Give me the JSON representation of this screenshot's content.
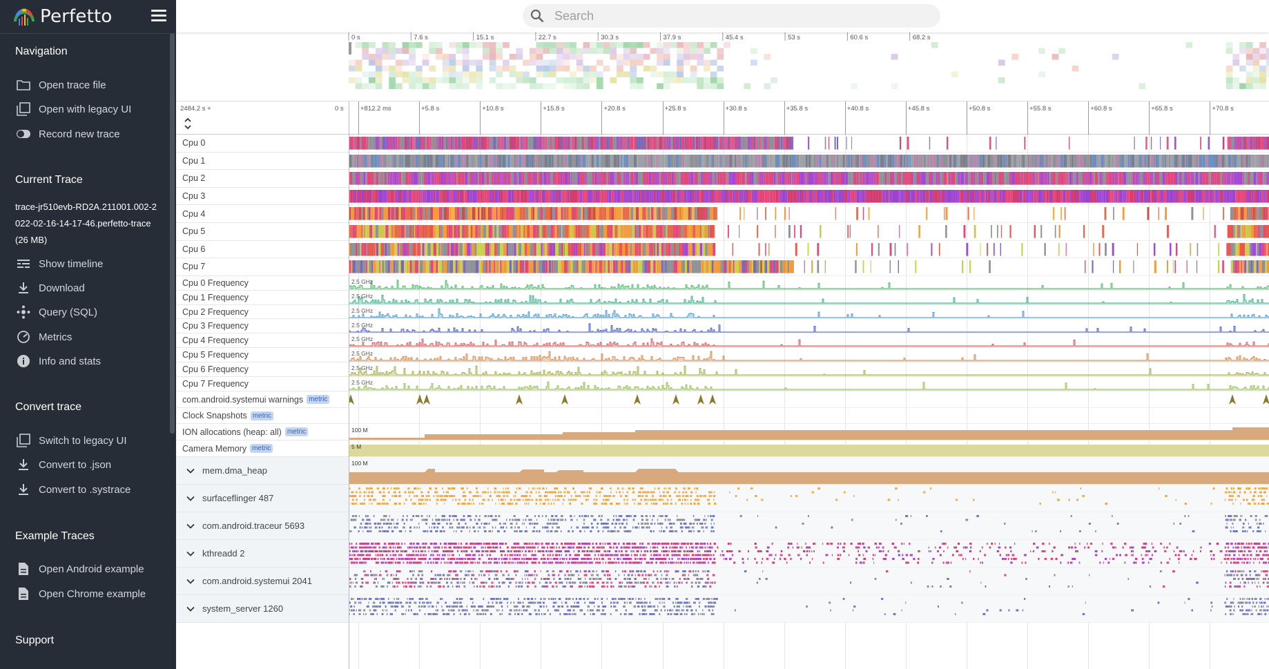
{
  "app": {
    "brand": "Perfetto"
  },
  "search": {
    "placeholder": "Search"
  },
  "sidebar": {
    "navigation": {
      "title": "Navigation",
      "items": [
        {
          "label": "Open trace file",
          "icon": "folder-icon"
        },
        {
          "label": "Open with legacy UI",
          "icon": "filter-none-icon"
        },
        {
          "label": "Record new trace",
          "icon": "toggle-icon"
        }
      ]
    },
    "current_trace": {
      "title": "Current Trace",
      "name": "trace-jr510evb-RD2A.211001.002-2022-02-16-14-17-46.perfetto-trace (26 MB)",
      "items": [
        {
          "label": "Show timeline",
          "icon": "timeline-icon"
        },
        {
          "label": "Download",
          "icon": "download-icon"
        },
        {
          "label": "Query (SQL)",
          "icon": "query-icon"
        },
        {
          "label": "Metrics",
          "icon": "speedometer-icon"
        },
        {
          "label": "Info and stats",
          "icon": "info-icon"
        }
      ]
    },
    "convert": {
      "title": "Convert trace",
      "items": [
        {
          "label": "Switch to legacy UI",
          "icon": "filter-none-icon"
        },
        {
          "label": "Convert to .json",
          "icon": "download-icon"
        },
        {
          "label": "Convert to .systrace",
          "icon": "download-icon"
        }
      ]
    },
    "examples": {
      "title": "Example Traces",
      "items": [
        {
          "label": "Open Android example",
          "icon": "document-icon"
        },
        {
          "label": "Open Chrome example",
          "icon": "document-icon"
        }
      ]
    },
    "support": {
      "title": "Support"
    }
  },
  "overview_axis": [
    "0 s",
    "7.6 s",
    "15.1 s",
    "22.7 s",
    "30.3 s",
    "37.9 s",
    "45.4 s",
    "53 s",
    "60.6 s",
    "68.2 s"
  ],
  "ruler": {
    "offset": "2484.2 s +",
    "zero": "0 s",
    "ticks": [
      "+812.2 ms",
      "+5.8 s",
      "+10.8 s",
      "+15.8 s",
      "+20.8 s",
      "+25.8 s",
      "+30.8 s",
      "+35.8 s",
      "+40.8 s",
      "+45.8 s",
      "+50.8 s",
      "+55.8 s",
      "+60.8 s",
      "+65.8 s",
      "+70.8 s"
    ]
  },
  "tracks": {
    "cpu": [
      "Cpu 0",
      "Cpu 1",
      "Cpu 2",
      "Cpu 3",
      "Cpu 4",
      "Cpu 5",
      "Cpu 6",
      "Cpu 7"
    ],
    "freq": [
      "Cpu 0 Frequency",
      "Cpu 1 Frequency",
      "Cpu 2 Frequency",
      "Cpu 3 Frequency",
      "Cpu 4 Frequency",
      "Cpu 5 Frequency",
      "Cpu 6 Frequency",
      "Cpu 7 Frequency"
    ],
    "freq_max": "2.5 GHz",
    "metrics": [
      {
        "label": "com.android.systemui warnings",
        "badge": "metric"
      },
      {
        "label": "Clock Snapshots",
        "badge": "metric"
      },
      {
        "label": "ION allocations (heap: all)",
        "badge": "metric",
        "value": "100 M"
      },
      {
        "label": "Camera Memory",
        "badge": "metric",
        "value": "5 M"
      }
    ],
    "groups": [
      {
        "label": "mem.dma_heap",
        "value": "100 M"
      },
      {
        "label": "surfaceflinger 487"
      },
      {
        "label": "com.android.traceur 5693"
      },
      {
        "label": "kthreadd 2"
      },
      {
        "label": "com.android.systemui 2041"
      },
      {
        "label": "system_server 1260"
      }
    ]
  },
  "colors": {
    "sidebar_bg": "#262d36",
    "accent_pink": "#e2487a",
    "accent_purple": "#a347d6",
    "accent_grey": "#8e9197"
  }
}
